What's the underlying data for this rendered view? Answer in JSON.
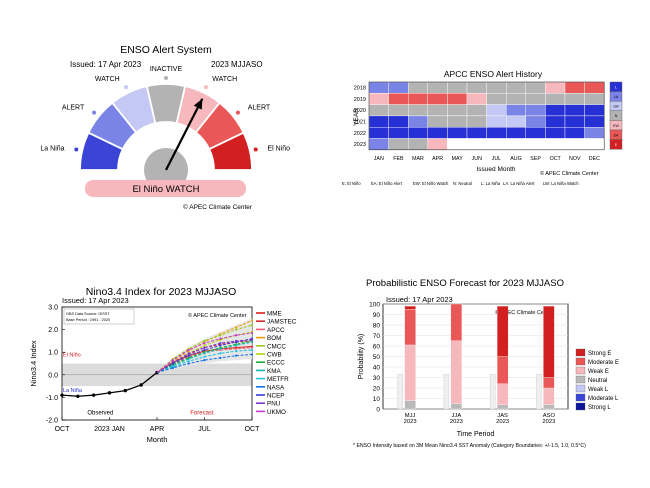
{
  "gauge": {
    "title": "ENSO Alert System",
    "issued": "Issued: 17 Apr 2023",
    "season": "2023 MJJASO",
    "labels": [
      "La Niña",
      "ALERT",
      "WATCH",
      "INACTIVE",
      "WATCH",
      "ALERT",
      "El Niño"
    ],
    "state": "El Niño WATCH",
    "credit": "© APEC Climate Center",
    "colors": [
      "#3a45d8",
      "#7a83e6",
      "#c4c8f4",
      "#b3b3b3",
      "#f6b8bd",
      "#ea5757",
      "#d21f1f"
    ]
  },
  "history": {
    "title": "APCC ENSO Alert History",
    "ylabel": "YEAR",
    "xlabel": "Issued Month",
    "years": [
      "2018",
      "2019",
      "2020",
      "2021",
      "2022",
      "2023"
    ],
    "months": [
      "JAN",
      "FEB",
      "MAR",
      "APR",
      "MAY",
      "JUN",
      "JUL",
      "AUG",
      "SEP",
      "OCT",
      "NOV",
      "DEC"
    ],
    "grid": [
      [
        "LA",
        "LA",
        "N",
        "N",
        "N",
        "N",
        "N",
        "N",
        "N",
        "EW",
        "EA",
        "EA"
      ],
      [
        "EW",
        "EA",
        "EA",
        "EA",
        "EA",
        "EW",
        "N",
        "N",
        "N",
        "N",
        "N",
        "N"
      ],
      [
        "N",
        "N",
        "N",
        "N",
        "N",
        "N",
        "LW",
        "LA",
        "LA",
        "L",
        "L",
        "L"
      ],
      [
        "L",
        "L",
        "LA",
        "N",
        "N",
        "N",
        "LW",
        "LW",
        "LA",
        "L",
        "L",
        "L"
      ],
      [
        "L",
        "L",
        "L",
        "L",
        "L",
        "L",
        "L",
        "L",
        "L",
        "L",
        "L",
        "LA"
      ],
      [
        "LA",
        "N",
        "N",
        "EW",
        "",
        "",
        "",
        "",
        "",
        "",
        "",
        ""
      ]
    ],
    "legend_keys": [
      "E",
      "EA",
      "EW",
      "N",
      "LW",
      "LA",
      "L"
    ],
    "legend_full": [
      "E: El Niño",
      "EA: El Niño Alert",
      "EW: El Niño Watch",
      "N: Neutral",
      "L: La Niña",
      "LA: La Niña Alert",
      "LW: La Niña Watch"
    ],
    "credit": "© APEC Climate Center"
  },
  "plume_title": "Nino3.4 Index for 2023 MJJASO",
  "plume_issued": "Issued: 17 Apr 2023",
  "plume_info": [
    "OBS Data Source: OISST",
    "Base Period : 1991 - 2020"
  ],
  "plume_credit": "© APEC Climate Center",
  "plume_marks": {
    "el_nino": "El Niño",
    "la_nina": "La Niña",
    "observed": "Observed",
    "forecast": "Forecast"
  },
  "prob_title": "Probabilistic ENSO Forecast for 2023 MJJASO",
  "prob_issued": "Issued: 17 Apr 2023",
  "prob_credit": "© APEC Climate Center",
  "footnote": "* ENSO Intensity based on 3M Mean Nino3.4 SST Anomaly (Category Boundaries: +/-1.5, 1.0, 0.5°C)",
  "chart_data": [
    {
      "type": "line",
      "title": "Nino3.4 Index for 2023 MJJASO",
      "xlabel": "Month",
      "ylabel": "Nino3.4 Index",
      "xticks": [
        "OCT",
        "2023 JAN",
        "APR",
        "JUL",
        "OCT"
      ],
      "ylim": [
        -2.0,
        3.0
      ],
      "yticks": [
        "-2.0",
        "-1.0",
        "0.0",
        "1.0",
        "2.0",
        "3.0"
      ],
      "thresholds": [
        0.5,
        -0.5
      ],
      "observed": {
        "x": [
          0,
          1,
          2,
          3,
          4,
          5,
          6
        ],
        "values": [
          -0.9,
          -0.95,
          -0.9,
          -0.8,
          -0.7,
          -0.45,
          0.1
        ]
      },
      "series": [
        {
          "name": "MME",
          "color": "#d62020",
          "values": [
            0.1,
            0.55,
            0.85,
            1.05,
            1.15,
            1.2,
            1.25
          ]
        },
        {
          "name": "JAMSTEC",
          "color": "#cc2a2a",
          "values": [
            0.1,
            0.5,
            0.9,
            1.2,
            1.35,
            1.45,
            1.5
          ]
        },
        {
          "name": "APCC",
          "color": "#f05f73",
          "values": [
            0.1,
            0.45,
            0.8,
            1.0,
            1.1,
            1.15,
            1.2
          ]
        },
        {
          "name": "BOM",
          "color": "#f0a000",
          "values": [
            0.1,
            0.6,
            1.05,
            1.45,
            1.8,
            2.1,
            2.4
          ]
        },
        {
          "name": "CMCC",
          "color": "#9fc920",
          "values": [
            0.1,
            0.7,
            1.15,
            1.5,
            1.75,
            2.0,
            2.2
          ]
        },
        {
          "name": "CWB",
          "color": "#b8d400",
          "values": [
            0.1,
            0.55,
            0.95,
            1.3,
            1.55,
            1.75,
            1.9
          ]
        },
        {
          "name": "ECCC",
          "color": "#18b038",
          "values": [
            0.1,
            0.45,
            0.75,
            1.0,
            1.2,
            1.35,
            1.5
          ]
        },
        {
          "name": "KMA",
          "color": "#14b7b7",
          "values": [
            0.1,
            0.4,
            0.7,
            0.95,
            1.15,
            1.3,
            1.45
          ]
        },
        {
          "name": "METFR",
          "color": "#1ec4e0",
          "values": [
            0.1,
            0.35,
            0.6,
            0.8,
            0.95,
            1.05,
            1.1
          ]
        },
        {
          "name": "NASA",
          "color": "#1570e6",
          "values": [
            0.1,
            0.3,
            0.5,
            0.65,
            0.75,
            0.85,
            0.9
          ]
        },
        {
          "name": "NCEP",
          "color": "#3b3bd8",
          "values": [
            0.1,
            0.5,
            0.85,
            1.1,
            1.3,
            1.45,
            1.6
          ]
        },
        {
          "name": "PNU",
          "color": "#7a35c8",
          "values": [
            0.1,
            0.55,
            0.95,
            1.2,
            1.4,
            1.5,
            1.55
          ]
        },
        {
          "name": "UKMO",
          "color": "#c83ac8",
          "values": [
            0.1,
            0.65,
            1.1,
            1.4,
            1.6,
            1.75,
            1.85
          ]
        }
      ]
    },
    {
      "type": "bar",
      "stacked": true,
      "title": "Probabilistic ENSO Forecast for 2023 MJJASO",
      "xlabel": "Time Period",
      "ylabel": "Probability (%)",
      "ylim": [
        0,
        100
      ],
      "yticks": [
        "0",
        "10",
        "20",
        "30",
        "40",
        "50",
        "60",
        "70",
        "80",
        "90",
        "100"
      ],
      "categories": [
        "MJJ 2023",
        "JJA 2023",
        "JAS 2023",
        "ASO 2023"
      ],
      "series": [
        {
          "name": "Strong E",
          "color": "#d21f1f",
          "values": [
            3,
            0,
            48,
            68
          ]
        },
        {
          "name": "Moderate E",
          "color": "#ea5757",
          "values": [
            34,
            35,
            26,
            10
          ]
        },
        {
          "name": "Weak E",
          "color": "#f6b8bd",
          "values": [
            53,
            60,
            20,
            16
          ]
        },
        {
          "name": "Neutral",
          "color": "#b9b9b9",
          "values": [
            8,
            5,
            4,
            4
          ]
        },
        {
          "name": "Weak L",
          "color": "#c4c8f4",
          "values": [
            0,
            0,
            0,
            0
          ]
        },
        {
          "name": "Moderate L",
          "color": "#3a45d8",
          "values": [
            0,
            0,
            0,
            0
          ]
        },
        {
          "name": "Strong L",
          "color": "#0c149a",
          "values": [
            0,
            0,
            0,
            0
          ]
        }
      ]
    }
  ]
}
